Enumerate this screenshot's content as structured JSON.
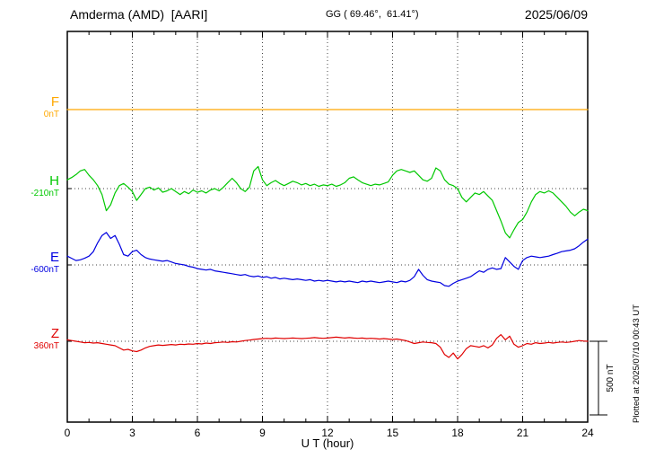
{
  "header": {
    "station": "Amderma (AMD)  [AARI]",
    "coords": "GG ( 69.46°,  61.41°)",
    "date": "2025/06/09"
  },
  "axes": {
    "x_ticks": [
      "0",
      "3",
      "6",
      "9",
      "12",
      "15",
      "18",
      "21",
      "24"
    ],
    "x_label": "U T (hour)",
    "x_range_hours": [
      0,
      24
    ]
  },
  "side_note": "Plotted at 2025/07/10 00:43 UT",
  "chart_data": {
    "type": "line",
    "title": "Amderma (AMD) [AARI] magnetogram 2025/06/09",
    "xlabel": "U T (hour)",
    "x_range_hours": [
      0,
      24
    ],
    "units": "nT",
    "grid": "dotted vertical every 3 h, dotted horizontal at each component baseline",
    "scale_bar": {
      "label": "500 nT",
      "nT": 500,
      "px": 82
    },
    "series": [
      {
        "name": "F",
        "label": "F",
        "baseline_label": "0nT",
        "color": "#ffa800",
        "baseline_frac": 0.2,
        "step_hours": 24,
        "offsets_nT": [
          0,
          0
        ]
      },
      {
        "name": "H",
        "label": "H",
        "baseline_label": "-210nT",
        "color": "#00c800",
        "baseline_frac": 0.4023,
        "step_hours": 0.2,
        "offsets_nT": [
          60,
          75,
          95,
          120,
          130,
          90,
          60,
          20,
          -40,
          -150,
          -110,
          -30,
          20,
          35,
          10,
          -20,
          -80,
          -40,
          0,
          10,
          -10,
          5,
          -25,
          -15,
          0,
          -20,
          -40,
          -20,
          -35,
          -10,
          -25,
          -15,
          -30,
          -10,
          0,
          -15,
          10,
          40,
          70,
          40,
          0,
          -20,
          10,
          120,
          150,
          60,
          20,
          40,
          55,
          35,
          20,
          35,
          50,
          40,
          25,
          35,
          20,
          30,
          15,
          25,
          20,
          30,
          15,
          25,
          40,
          70,
          80,
          60,
          40,
          30,
          20,
          30,
          25,
          35,
          45,
          90,
          120,
          130,
          120,
          110,
          120,
          90,
          60,
          50,
          70,
          140,
          120,
          60,
          30,
          20,
          0,
          -60,
          -90,
          -60,
          -30,
          -40,
          -20,
          -50,
          -80,
          -150,
          -220,
          -300,
          -335,
          -280,
          -230,
          -210,
          -160,
          -90,
          -40,
          -20,
          -30,
          -15,
          -30,
          -60,
          -90,
          -120,
          -160,
          -185,
          -160,
          -140,
          -150
        ]
      },
      {
        "name": "E",
        "label": "E",
        "baseline_label": "-600nT",
        "color": "#0000e0",
        "baseline_frac": 0.5977,
        "step_hours": 0.2,
        "offsets_nT": [
          60,
          45,
          30,
          35,
          45,
          60,
          90,
          150,
          200,
          220,
          180,
          200,
          140,
          70,
          60,
          90,
          100,
          70,
          50,
          40,
          35,
          30,
          25,
          30,
          20,
          10,
          5,
          0,
          -10,
          -15,
          -25,
          -30,
          -35,
          -30,
          -40,
          -45,
          -50,
          -55,
          -60,
          -65,
          -70,
          -65,
          -75,
          -80,
          -75,
          -85,
          -80,
          -90,
          -85,
          -95,
          -90,
          -95,
          -100,
          -95,
          -100,
          -105,
          -100,
          -110,
          -105,
          -110,
          -105,
          -110,
          -115,
          -110,
          -115,
          -110,
          -115,
          -120,
          -110,
          -115,
          -110,
          -115,
          -120,
          -115,
          -110,
          -115,
          -120,
          -110,
          -115,
          -105,
          -80,
          -30,
          -70,
          -100,
          -110,
          -115,
          -120,
          -140,
          -145,
          -125,
          -110,
          -100,
          -90,
          -80,
          -60,
          -40,
          -50,
          -30,
          -20,
          -30,
          -25,
          50,
          20,
          -10,
          -30,
          30,
          50,
          60,
          55,
          50,
          55,
          60,
          70,
          80,
          90,
          95,
          100,
          110,
          130,
          155,
          175
        ]
      },
      {
        "name": "Z",
        "label": "Z",
        "baseline_label": "360nT",
        "color": "#e00000",
        "baseline_frac": 0.7931,
        "step_hours": 0.2,
        "offsets_nT": [
          10,
          5,
          0,
          -5,
          -10,
          -8,
          -12,
          -10,
          -15,
          -20,
          -25,
          -30,
          -45,
          -60,
          -55,
          -65,
          -70,
          -60,
          -45,
          -35,
          -30,
          -25,
          -28,
          -25,
          -22,
          -25,
          -20,
          -22,
          -18,
          -20,
          -15,
          -18,
          -12,
          -15,
          -10,
          -8,
          -5,
          -8,
          -3,
          -5,
          0,
          5,
          8,
          12,
          15,
          18,
          20,
          18,
          22,
          20,
          18,
          20,
          22,
          20,
          18,
          20,
          22,
          25,
          22,
          20,
          22,
          25,
          28,
          25,
          22,
          25,
          22,
          20,
          22,
          18,
          20,
          18,
          15,
          18,
          15,
          12,
          15,
          10,
          5,
          -5,
          -15,
          -10,
          -5,
          -8,
          -10,
          -15,
          -40,
          -90,
          -110,
          -80,
          -120,
          -90,
          -50,
          -30,
          -35,
          -40,
          -30,
          -45,
          -25,
          20,
          45,
          10,
          35,
          -20,
          -40,
          -30,
          -15,
          -20,
          -10,
          -15,
          -12,
          -8,
          -12,
          -8,
          -5,
          -8,
          -5,
          0,
          5,
          2,
          0
        ]
      }
    ]
  }
}
